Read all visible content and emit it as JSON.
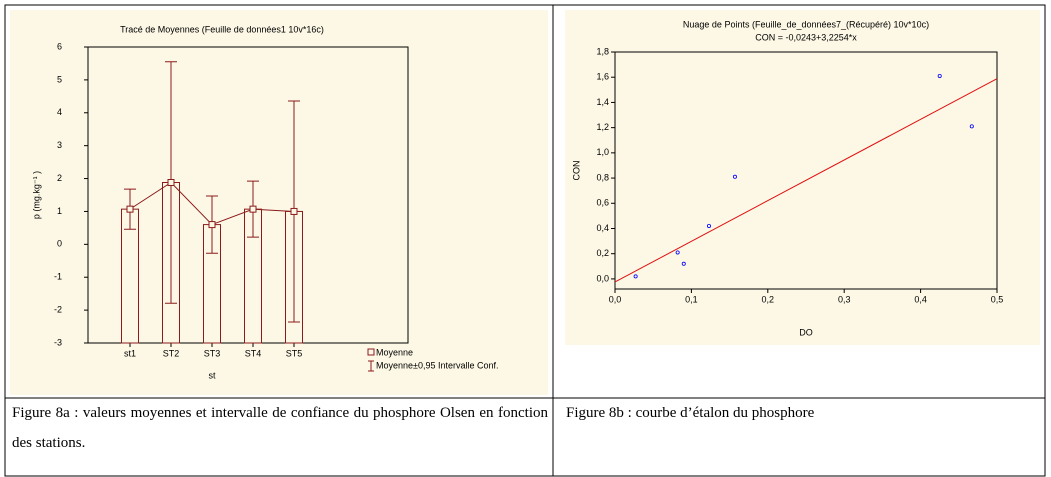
{
  "chart_data": [
    {
      "type": "bar",
      "title": "Tracé de Moyennes (Feuille de données1 10v*16c)",
      "categories": [
        "st1",
        "ST2",
        "ST3",
        "ST4",
        "ST5"
      ],
      "values": [
        1.07,
        1.88,
        0.6,
        1.07,
        1.0
      ],
      "errors": [
        0.61,
        3.67,
        0.87,
        0.85,
        3.36
      ],
      "color": "#8b1a1a",
      "x_label": "st",
      "y_label": "p (mg.kg⁻¹ )",
      "ylim": [
        -3,
        6
      ],
      "yticks": [
        -3,
        -2,
        -1,
        0,
        1,
        2,
        3,
        4,
        5,
        6
      ],
      "legend": [
        "Moyenne",
        "Moyenne±0,95 Intervalle Conf."
      ]
    },
    {
      "type": "scatter",
      "title": "Nuage de Points (Feuille_de_données7_(Récupéré) 10v*10c)",
      "subtitle": "CON = -0,0243+3,2254*x",
      "x": [
        0.027,
        0.082,
        0.09,
        0.123,
        0.157,
        0.425,
        0.467
      ],
      "values": [
        0.02,
        0.21,
        0.12,
        0.42,
        0.81,
        1.61,
        1.21
      ],
      "color": "#0000ff",
      "line_color": "#e01010",
      "intercept": -0.0243,
      "slope": 3.2254,
      "x_label": "DO",
      "y_label": "CON",
      "xlim": [
        0,
        0.5
      ],
      "ylim": [
        -0.08,
        1.8
      ],
      "xticks": [
        {
          "value": 0,
          "label": "0,0"
        },
        {
          "value": 0.1,
          "label": "0,1"
        },
        {
          "value": 0.2,
          "label": "0,2"
        },
        {
          "value": 0.3,
          "label": "0,3"
        },
        {
          "value": 0.4,
          "label": "0,4"
        },
        {
          "value": 0.5,
          "label": "0,5"
        }
      ],
      "yticks": [
        {
          "value": 0,
          "label": "0,0"
        },
        {
          "value": 0.2,
          "label": "0,2"
        },
        {
          "value": 0.4,
          "label": "0,4"
        },
        {
          "value": 0.6,
          "label": "0,6"
        },
        {
          "value": 0.8,
          "label": "0,8"
        },
        {
          "value": 1,
          "label": "1,0"
        },
        {
          "value": 1.2,
          "label": "1,2"
        },
        {
          "value": 1.4,
          "label": "1,4"
        },
        {
          "value": 1.6,
          "label": "1,6"
        },
        {
          "value": 1.8,
          "label": "1,8"
        }
      ]
    }
  ],
  "captions": [
    "Figure 8a : valeurs  moyennes  et intervalle de confiance du phosphore Olsen  en fonction des stations.",
    "Figure 8b : courbe d’étalon du phosphore"
  ]
}
